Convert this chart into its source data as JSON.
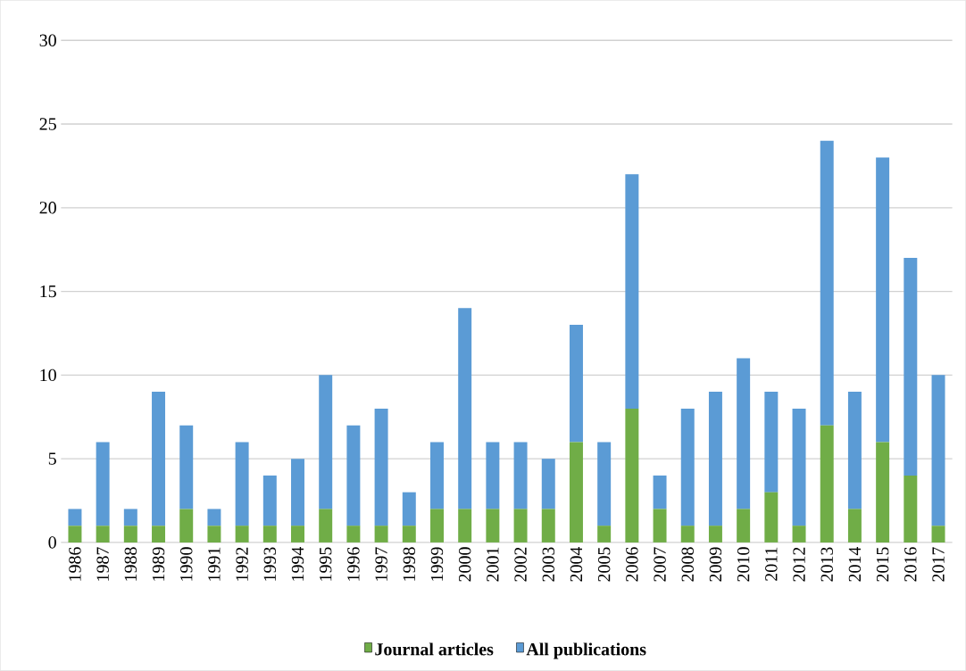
{
  "chart_data": {
    "type": "bar",
    "stacked": true,
    "categories": [
      "1986",
      "1987",
      "1988",
      "1989",
      "1990",
      "1991",
      "1992",
      "1993",
      "1994",
      "1995",
      "1996",
      "1997",
      "1998",
      "1999",
      "2000",
      "2001",
      "2002",
      "2003",
      "2004",
      "2005",
      "2006",
      "2007",
      "2008",
      "2009",
      "2010",
      "2011",
      "2012",
      "2013",
      "2014",
      "2015",
      "2016",
      "2017"
    ],
    "series": [
      {
        "name": "Journal articles",
        "color": "#70ad47",
        "values": [
          1,
          1,
          1,
          1,
          2,
          1,
          1,
          1,
          1,
          2,
          1,
          1,
          1,
          2,
          2,
          2,
          2,
          2,
          6,
          1,
          8,
          2,
          1,
          1,
          2,
          3,
          1,
          7,
          2,
          6,
          4,
          1
        ]
      },
      {
        "name": "All publications",
        "color": "#5b9bd5",
        "values": [
          1,
          5,
          1,
          8,
          5,
          1,
          5,
          3,
          4,
          8,
          6,
          7,
          2,
          4,
          12,
          4,
          4,
          3,
          7,
          5,
          14,
          2,
          7,
          8,
          9,
          6,
          7,
          17,
          7,
          17,
          13,
          9
        ]
      }
    ],
    "ylim": [
      0,
      30
    ],
    "yticks": [
      0,
      5,
      10,
      15,
      20,
      25,
      30
    ],
    "grid": "y",
    "legend": "bottom"
  }
}
